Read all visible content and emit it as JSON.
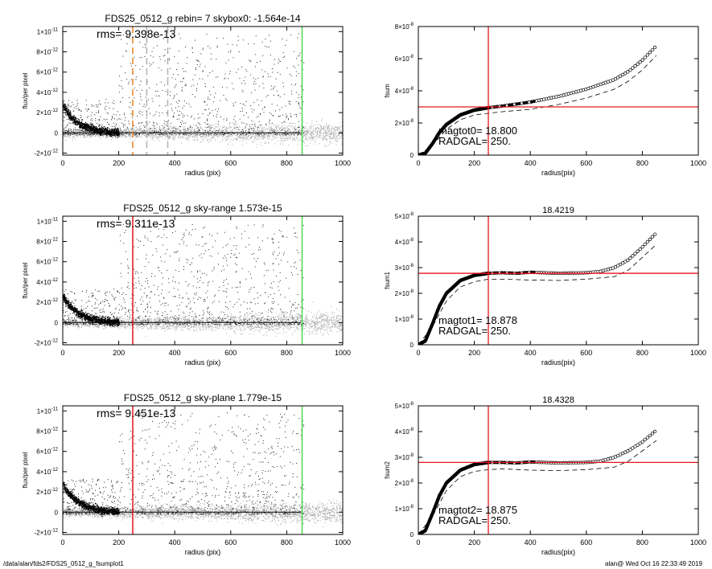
{
  "footer": {
    "path": "/data/alan/fds2/FDS25_0512_g_fsumplot1",
    "user_time": "alan@  Wed Oct 16 22:33:49 2019"
  },
  "colors": {
    "scatter_gray": "#a8a8a8",
    "points_black": "#000000",
    "red_line": "#e8141c",
    "green_line": "#4cd94c",
    "orange_dash": "#e8821e"
  },
  "chart_data": [
    {
      "type": "scatter",
      "panel": "flux-1",
      "title": "FDS25_0512_g rebin= 7    skybox0: -1.564e-14",
      "annotation": "rms= 9.398e-13",
      "xlabel": "radius (pix)",
      "ylabel": "flux/per pixel",
      "xlim": [
        0,
        1000
      ],
      "ylim": [
        -2.2e-12,
        1.05e-11
      ],
      "x_ticks": [
        "0",
        "200",
        "400",
        "600",
        "800",
        "1000"
      ],
      "y_ticks": [
        {
          "v": -2e-12,
          "m": "-2×10",
          "e": "-12"
        },
        {
          "v": 0,
          "m": "0",
          "e": ""
        },
        {
          "v": 2e-12,
          "m": "2×10",
          "e": "-12"
        },
        {
          "v": 4e-12,
          "m": "4×10",
          "e": "-12"
        },
        {
          "v": 6e-12,
          "m": "6×10",
          "e": "-12"
        },
        {
          "v": 8e-12,
          "m": "8×10",
          "e": "-12"
        },
        {
          "v": 1e-11,
          "m": "1×10",
          "e": "-11"
        }
      ],
      "profile_peak": 2.7e-12,
      "profile_scale": 55,
      "vlines": [
        {
          "x": 250,
          "color": "#e8821e",
          "dash": true
        },
        {
          "x": 300,
          "color": "#b0b0b0",
          "dash": true
        },
        {
          "x": 375,
          "color": "#b0b0b0",
          "dash": true
        },
        {
          "x": 855,
          "color": "#4cd94c",
          "dash": false
        }
      ]
    },
    {
      "type": "scatter",
      "panel": "fsum-1",
      "title": "",
      "xlabel": "radius(pix)",
      "ylabel": "fsum",
      "xlim": [
        0,
        1000
      ],
      "ylim": [
        0,
        8e-08
      ],
      "x_ticks": [
        "0",
        "200",
        "400",
        "600",
        "800",
        "1000"
      ],
      "y_ticks": [
        {
          "v": 0,
          "m": "0",
          "e": ""
        },
        {
          "v": 2e-08,
          "m": "2×10",
          "e": "-8"
        },
        {
          "v": 4e-08,
          "m": "4×10",
          "e": "-8"
        },
        {
          "v": 6e-08,
          "m": "6×10",
          "e": "-8"
        },
        {
          "v": 8e-08,
          "m": "8×10",
          "e": "-8"
        }
      ],
      "annotation_lines": [
        "magtot0=  18.800",
        "RADGAL=    250."
      ],
      "hline": 3e-08,
      "vline": 250,
      "curve": [
        [
          0,
          0
        ],
        [
          25,
          1.2e-09
        ],
        [
          50,
          7e-09
        ],
        [
          75,
          1.4e-08
        ],
        [
          100,
          1.9e-08
        ],
        [
          150,
          2.5e-08
        ],
        [
          200,
          2.8e-08
        ],
        [
          250,
          2.95e-08
        ],
        [
          300,
          3.05e-08
        ],
        [
          400,
          3.3e-08
        ],
        [
          500,
          3.65e-08
        ],
        [
          600,
          4.1e-08
        ],
        [
          700,
          4.7e-08
        ],
        [
          750,
          5.2e-08
        ],
        [
          800,
          5.9e-08
        ],
        [
          850,
          6.8e-08
        ]
      ],
      "dash_curve": [
        [
          0,
          0
        ],
        [
          50,
          6e-09
        ],
        [
          100,
          1.6e-08
        ],
        [
          150,
          2.2e-08
        ],
        [
          200,
          2.5e-08
        ],
        [
          250,
          2.6e-08
        ],
        [
          300,
          2.7e-08
        ],
        [
          400,
          2.85e-08
        ],
        [
          500,
          3.15e-08
        ],
        [
          600,
          3.55e-08
        ],
        [
          700,
          4.1e-08
        ],
        [
          750,
          4.6e-08
        ],
        [
          800,
          5.3e-08
        ],
        [
          850,
          6.2e-08
        ]
      ]
    },
    {
      "type": "scatter",
      "panel": "flux-2",
      "title": "FDS25_0512_g sky-range  1.573e-15",
      "annotation": "rms= 9.311e-13",
      "xlabel": "radius (pix)",
      "ylabel": "flux/per pixel",
      "xlim": [
        0,
        1000
      ],
      "ylim": [
        -2.2e-12,
        1.05e-11
      ],
      "x_ticks": [
        "0",
        "200",
        "400",
        "600",
        "800",
        "1000"
      ],
      "y_ticks": [
        {
          "v": -2e-12,
          "m": "-2×10",
          "e": "-12"
        },
        {
          "v": 0,
          "m": "0",
          "e": ""
        },
        {
          "v": 2e-12,
          "m": "2×10",
          "e": "-12"
        },
        {
          "v": 4e-12,
          "m": "4×10",
          "e": "-12"
        },
        {
          "v": 6e-12,
          "m": "6×10",
          "e": "-12"
        },
        {
          "v": 8e-12,
          "m": "8×10",
          "e": "-12"
        },
        {
          "v": 1e-11,
          "m": "1×10",
          "e": "-11"
        }
      ],
      "profile_peak": 2.6e-12,
      "profile_scale": 55,
      "vlines": [
        {
          "x": 250,
          "color": "#e8141c",
          "dash": false
        },
        {
          "x": 855,
          "color": "#4cd94c",
          "dash": false
        }
      ]
    },
    {
      "type": "scatter",
      "panel": "fsum-2",
      "title": "18.4219",
      "xlabel": "radius(pix)",
      "ylabel": "fsum1",
      "xlim": [
        0,
        1000
      ],
      "ylim": [
        0,
        5e-08
      ],
      "x_ticks": [
        "0",
        "200",
        "400",
        "600",
        "800",
        "1000"
      ],
      "y_ticks": [
        {
          "v": 0,
          "m": "0",
          "e": ""
        },
        {
          "v": 1e-08,
          "m": "1×10",
          "e": "-8"
        },
        {
          "v": 2e-08,
          "m": "2×10",
          "e": "-8"
        },
        {
          "v": 3e-08,
          "m": "3×10",
          "e": "-8"
        },
        {
          "v": 4e-08,
          "m": "4×10",
          "e": "-8"
        },
        {
          "v": 5e-08,
          "m": "5×10",
          "e": "-8"
        }
      ],
      "annotation_lines": [
        "magtot1=  18.878",
        "RADGAL=    250."
      ],
      "hline": 2.78e-08,
      "vline": 250,
      "curve": [
        [
          0,
          0
        ],
        [
          25,
          1.5e-09
        ],
        [
          50,
          8e-09
        ],
        [
          75,
          1.5e-08
        ],
        [
          100,
          2e-08
        ],
        [
          150,
          2.5e-08
        ],
        [
          200,
          2.7e-08
        ],
        [
          250,
          2.78e-08
        ],
        [
          300,
          2.8e-08
        ],
        [
          350,
          2.78e-08
        ],
        [
          400,
          2.82e-08
        ],
        [
          500,
          2.78e-08
        ],
        [
          600,
          2.8e-08
        ],
        [
          650,
          2.85e-08
        ],
        [
          700,
          3e-08
        ],
        [
          750,
          3.3e-08
        ],
        [
          800,
          3.8e-08
        ],
        [
          850,
          4.35e-08
        ]
      ],
      "dash_curve": [
        [
          0,
          0
        ],
        [
          50,
          7e-09
        ],
        [
          100,
          1.7e-08
        ],
        [
          150,
          2.25e-08
        ],
        [
          200,
          2.45e-08
        ],
        [
          250,
          2.55e-08
        ],
        [
          300,
          2.55e-08
        ],
        [
          400,
          2.52e-08
        ],
        [
          500,
          2.5e-08
        ],
        [
          600,
          2.55e-08
        ],
        [
          700,
          2.65e-08
        ],
        [
          750,
          2.9e-08
        ],
        [
          800,
          3.4e-08
        ],
        [
          850,
          3.9e-08
        ]
      ]
    },
    {
      "type": "scatter",
      "panel": "flux-3",
      "title": "FDS25_0512_g sky-plane  1.779e-15",
      "annotation": "rms= 9.451e-13",
      "xlabel": "radius (pix)",
      "ylabel": "flux/per pixel",
      "xlim": [
        0,
        1000
      ],
      "ylim": [
        -2.2e-12,
        1.05e-11
      ],
      "x_ticks": [
        "0",
        "200",
        "400",
        "600",
        "800",
        "1000"
      ],
      "y_ticks": [
        {
          "v": -2e-12,
          "m": "-2×10",
          "e": "-12"
        },
        {
          "v": 0,
          "m": "0",
          "e": ""
        },
        {
          "v": 2e-12,
          "m": "2×10",
          "e": "-12"
        },
        {
          "v": 4e-12,
          "m": "4×10",
          "e": "-12"
        },
        {
          "v": 6e-12,
          "m": "6×10",
          "e": "-12"
        },
        {
          "v": 8e-12,
          "m": "8×10",
          "e": "-12"
        },
        {
          "v": 1e-11,
          "m": "1×10",
          "e": "-11"
        }
      ],
      "profile_peak": 2.8e-12,
      "profile_scale": 55,
      "vlines": [
        {
          "x": 250,
          "color": "#e8141c",
          "dash": false
        },
        {
          "x": 855,
          "color": "#4cd94c",
          "dash": false
        }
      ]
    },
    {
      "type": "scatter",
      "panel": "fsum-3",
      "title": "18.4328",
      "xlabel": "radius(pix)",
      "ylabel": "fsum2",
      "xlim": [
        0,
        1000
      ],
      "ylim": [
        0,
        5e-08
      ],
      "x_ticks": [
        "0",
        "200",
        "400",
        "600",
        "800",
        "1000"
      ],
      "y_ticks": [
        {
          "v": 0,
          "m": "0",
          "e": ""
        },
        {
          "v": 1e-08,
          "m": "1×10",
          "e": "-8"
        },
        {
          "v": 2e-08,
          "m": "2×10",
          "e": "-8"
        },
        {
          "v": 3e-08,
          "m": "3×10",
          "e": "-8"
        },
        {
          "v": 4e-08,
          "m": "4×10",
          "e": "-8"
        },
        {
          "v": 5e-08,
          "m": "5×10",
          "e": "-8"
        }
      ],
      "annotation_lines": [
        "magtot2=  18.875",
        "RADGAL=    250."
      ],
      "hline": 2.8e-08,
      "vline": 250,
      "curve": [
        [
          0,
          0
        ],
        [
          25,
          1.5e-09
        ],
        [
          50,
          8e-09
        ],
        [
          75,
          1.5e-08
        ],
        [
          100,
          2e-08
        ],
        [
          150,
          2.5e-08
        ],
        [
          200,
          2.72e-08
        ],
        [
          250,
          2.8e-08
        ],
        [
          300,
          2.8e-08
        ],
        [
          350,
          2.78e-08
        ],
        [
          400,
          2.82e-08
        ],
        [
          500,
          2.78e-08
        ],
        [
          600,
          2.8e-08
        ],
        [
          650,
          2.85e-08
        ],
        [
          700,
          3e-08
        ],
        [
          750,
          3.25e-08
        ],
        [
          800,
          3.6e-08
        ],
        [
          850,
          4.05e-08
        ]
      ],
      "dash_curve": [
        [
          0,
          0
        ],
        [
          50,
          7e-09
        ],
        [
          100,
          1.7e-08
        ],
        [
          150,
          2.25e-08
        ],
        [
          200,
          2.45e-08
        ],
        [
          250,
          2.52e-08
        ],
        [
          300,
          2.55e-08
        ],
        [
          400,
          2.5e-08
        ],
        [
          500,
          2.48e-08
        ],
        [
          600,
          2.52e-08
        ],
        [
          700,
          2.62e-08
        ],
        [
          750,
          2.85e-08
        ],
        [
          800,
          3.25e-08
        ],
        [
          850,
          3.65e-08
        ]
      ]
    }
  ]
}
